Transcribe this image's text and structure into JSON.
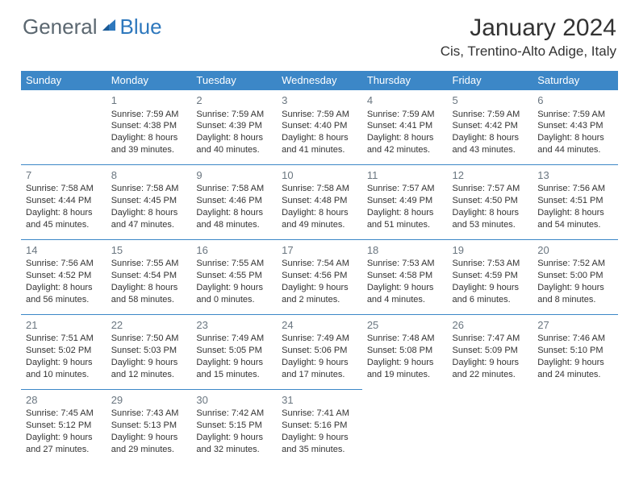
{
  "logo": {
    "general": "General",
    "blue": "Blue"
  },
  "title": "January 2024",
  "location": "Cis, Trentino-Alto Adige, Italy",
  "colors": {
    "header_bg": "#3c87c7",
    "header_text": "#ffffff",
    "border": "#3c87c7",
    "daynum": "#6a7680",
    "body_text": "#333333",
    "logo_gray": "#5b6770",
    "logo_blue": "#2e78bd"
  },
  "day_headers": [
    "Sunday",
    "Monday",
    "Tuesday",
    "Wednesday",
    "Thursday",
    "Friday",
    "Saturday"
  ],
  "weeks": [
    [
      null,
      {
        "n": "1",
        "sr": "Sunrise: 7:59 AM",
        "ss": "Sunset: 4:38 PM",
        "d1": "Daylight: 8 hours",
        "d2": "and 39 minutes."
      },
      {
        "n": "2",
        "sr": "Sunrise: 7:59 AM",
        "ss": "Sunset: 4:39 PM",
        "d1": "Daylight: 8 hours",
        "d2": "and 40 minutes."
      },
      {
        "n": "3",
        "sr": "Sunrise: 7:59 AM",
        "ss": "Sunset: 4:40 PM",
        "d1": "Daylight: 8 hours",
        "d2": "and 41 minutes."
      },
      {
        "n": "4",
        "sr": "Sunrise: 7:59 AM",
        "ss": "Sunset: 4:41 PM",
        "d1": "Daylight: 8 hours",
        "d2": "and 42 minutes."
      },
      {
        "n": "5",
        "sr": "Sunrise: 7:59 AM",
        "ss": "Sunset: 4:42 PM",
        "d1": "Daylight: 8 hours",
        "d2": "and 43 minutes."
      },
      {
        "n": "6",
        "sr": "Sunrise: 7:59 AM",
        "ss": "Sunset: 4:43 PM",
        "d1": "Daylight: 8 hours",
        "d2": "and 44 minutes."
      }
    ],
    [
      {
        "n": "7",
        "sr": "Sunrise: 7:58 AM",
        "ss": "Sunset: 4:44 PM",
        "d1": "Daylight: 8 hours",
        "d2": "and 45 minutes."
      },
      {
        "n": "8",
        "sr": "Sunrise: 7:58 AM",
        "ss": "Sunset: 4:45 PM",
        "d1": "Daylight: 8 hours",
        "d2": "and 47 minutes."
      },
      {
        "n": "9",
        "sr": "Sunrise: 7:58 AM",
        "ss": "Sunset: 4:46 PM",
        "d1": "Daylight: 8 hours",
        "d2": "and 48 minutes."
      },
      {
        "n": "10",
        "sr": "Sunrise: 7:58 AM",
        "ss": "Sunset: 4:48 PM",
        "d1": "Daylight: 8 hours",
        "d2": "and 49 minutes."
      },
      {
        "n": "11",
        "sr": "Sunrise: 7:57 AM",
        "ss": "Sunset: 4:49 PM",
        "d1": "Daylight: 8 hours",
        "d2": "and 51 minutes."
      },
      {
        "n": "12",
        "sr": "Sunrise: 7:57 AM",
        "ss": "Sunset: 4:50 PM",
        "d1": "Daylight: 8 hours",
        "d2": "and 53 minutes."
      },
      {
        "n": "13",
        "sr": "Sunrise: 7:56 AM",
        "ss": "Sunset: 4:51 PM",
        "d1": "Daylight: 8 hours",
        "d2": "and 54 minutes."
      }
    ],
    [
      {
        "n": "14",
        "sr": "Sunrise: 7:56 AM",
        "ss": "Sunset: 4:52 PM",
        "d1": "Daylight: 8 hours",
        "d2": "and 56 minutes."
      },
      {
        "n": "15",
        "sr": "Sunrise: 7:55 AM",
        "ss": "Sunset: 4:54 PM",
        "d1": "Daylight: 8 hours",
        "d2": "and 58 minutes."
      },
      {
        "n": "16",
        "sr": "Sunrise: 7:55 AM",
        "ss": "Sunset: 4:55 PM",
        "d1": "Daylight: 9 hours",
        "d2": "and 0 minutes."
      },
      {
        "n": "17",
        "sr": "Sunrise: 7:54 AM",
        "ss": "Sunset: 4:56 PM",
        "d1": "Daylight: 9 hours",
        "d2": "and 2 minutes."
      },
      {
        "n": "18",
        "sr": "Sunrise: 7:53 AM",
        "ss": "Sunset: 4:58 PM",
        "d1": "Daylight: 9 hours",
        "d2": "and 4 minutes."
      },
      {
        "n": "19",
        "sr": "Sunrise: 7:53 AM",
        "ss": "Sunset: 4:59 PM",
        "d1": "Daylight: 9 hours",
        "d2": "and 6 minutes."
      },
      {
        "n": "20",
        "sr": "Sunrise: 7:52 AM",
        "ss": "Sunset: 5:00 PM",
        "d1": "Daylight: 9 hours",
        "d2": "and 8 minutes."
      }
    ],
    [
      {
        "n": "21",
        "sr": "Sunrise: 7:51 AM",
        "ss": "Sunset: 5:02 PM",
        "d1": "Daylight: 9 hours",
        "d2": "and 10 minutes."
      },
      {
        "n": "22",
        "sr": "Sunrise: 7:50 AM",
        "ss": "Sunset: 5:03 PM",
        "d1": "Daylight: 9 hours",
        "d2": "and 12 minutes."
      },
      {
        "n": "23",
        "sr": "Sunrise: 7:49 AM",
        "ss": "Sunset: 5:05 PM",
        "d1": "Daylight: 9 hours",
        "d2": "and 15 minutes."
      },
      {
        "n": "24",
        "sr": "Sunrise: 7:49 AM",
        "ss": "Sunset: 5:06 PM",
        "d1": "Daylight: 9 hours",
        "d2": "and 17 minutes."
      },
      {
        "n": "25",
        "sr": "Sunrise: 7:48 AM",
        "ss": "Sunset: 5:08 PM",
        "d1": "Daylight: 9 hours",
        "d2": "and 19 minutes."
      },
      {
        "n": "26",
        "sr": "Sunrise: 7:47 AM",
        "ss": "Sunset: 5:09 PM",
        "d1": "Daylight: 9 hours",
        "d2": "and 22 minutes."
      },
      {
        "n": "27",
        "sr": "Sunrise: 7:46 AM",
        "ss": "Sunset: 5:10 PM",
        "d1": "Daylight: 9 hours",
        "d2": "and 24 minutes."
      }
    ],
    [
      {
        "n": "28",
        "sr": "Sunrise: 7:45 AM",
        "ss": "Sunset: 5:12 PM",
        "d1": "Daylight: 9 hours",
        "d2": "and 27 minutes."
      },
      {
        "n": "29",
        "sr": "Sunrise: 7:43 AM",
        "ss": "Sunset: 5:13 PM",
        "d1": "Daylight: 9 hours",
        "d2": "and 29 minutes."
      },
      {
        "n": "30",
        "sr": "Sunrise: 7:42 AM",
        "ss": "Sunset: 5:15 PM",
        "d1": "Daylight: 9 hours",
        "d2": "and 32 minutes."
      },
      {
        "n": "31",
        "sr": "Sunrise: 7:41 AM",
        "ss": "Sunset: 5:16 PM",
        "d1": "Daylight: 9 hours",
        "d2": "and 35 minutes."
      },
      null,
      null,
      null
    ]
  ]
}
